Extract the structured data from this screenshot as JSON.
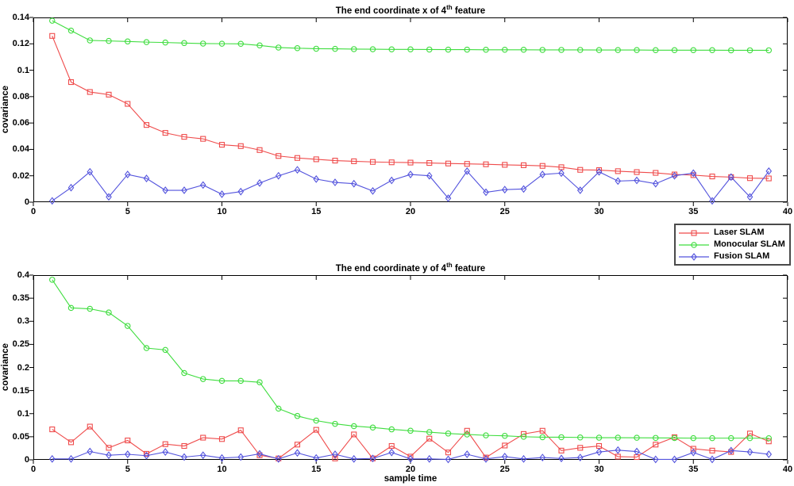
{
  "figure": {
    "background": "#ffffff",
    "axis_color": "#000000",
    "text_color": "#000000"
  },
  "legend": {
    "border_color": "#4a4a4a",
    "items": [
      {
        "label": "Laser SLAM",
        "color": "#ef4b4b",
        "marker": "square"
      },
      {
        "label": "Monocular SLAM",
        "color": "#3fdd3f",
        "marker": "circle"
      },
      {
        "label": "Fusion SLAM",
        "color": "#5353dd",
        "marker": "diamond"
      }
    ]
  },
  "chart_data": [
    {
      "type": "line",
      "title": "The end coordinate x of 4th feature",
      "title_parts": {
        "pre": "The end coordinate x of 4",
        "sup": "th",
        "post": " feature"
      },
      "xlabel": "",
      "ylabel": "covariance",
      "xlim": [
        0,
        40
      ],
      "ylim": [
        0,
        0.14
      ],
      "grid": false,
      "legend_position": "outside-right-below",
      "xtick_values": [
        0,
        5,
        10,
        15,
        20,
        25,
        30,
        35,
        40
      ],
      "xtick_labels": [
        "0",
        "5",
        "10",
        "15",
        "20",
        "25",
        "30",
        "35",
        "40"
      ],
      "ytick_values": [
        0,
        0.02,
        0.04,
        0.06,
        0.08,
        0.1,
        0.12,
        0.14
      ],
      "ytick_labels": [
        "0",
        "0.02",
        "0.04",
        "0.06",
        "0.08",
        "0.1",
        "0.12",
        "0.14"
      ],
      "x": [
        1,
        2,
        3,
        4,
        5,
        6,
        7,
        8,
        9,
        10,
        11,
        12,
        13,
        14,
        15,
        16,
        17,
        18,
        19,
        20,
        21,
        22,
        23,
        24,
        25,
        26,
        27,
        28,
        29,
        30,
        31,
        32,
        33,
        34,
        35,
        36,
        37,
        38,
        39
      ],
      "series": [
        {
          "name": "Laser SLAM",
          "color": "#ef4b4b",
          "marker": "square",
          "values": [
            0.126,
            0.091,
            0.0835,
            0.0815,
            0.0745,
            0.0585,
            0.0525,
            0.0495,
            0.048,
            0.0435,
            0.0425,
            0.0395,
            0.035,
            0.0335,
            0.0325,
            0.0315,
            0.031,
            0.0305,
            0.0302,
            0.03,
            0.0297,
            0.0293,
            0.029,
            0.0287,
            0.0283,
            0.028,
            0.0275,
            0.0265,
            0.0245,
            0.0243,
            0.0235,
            0.0228,
            0.0222,
            0.021,
            0.0205,
            0.0195,
            0.019,
            0.0182,
            0.018
          ]
        },
        {
          "name": "Monocular SLAM",
          "color": "#3fdd3f",
          "marker": "circle",
          "values": [
            0.1375,
            0.13,
            0.1226,
            0.1222,
            0.1218,
            0.1213,
            0.121,
            0.1206,
            0.1202,
            0.1201,
            0.12,
            0.1188,
            0.1172,
            0.1167,
            0.1163,
            0.1162,
            0.116,
            0.1159,
            0.1158,
            0.1158,
            0.1157,
            0.1156,
            0.1156,
            0.1155,
            0.1155,
            0.1155,
            0.1154,
            0.1154,
            0.1154,
            0.1153,
            0.1153,
            0.1153,
            0.1152,
            0.1152,
            0.1152,
            0.1152,
            0.1151,
            0.1151,
            0.1151
          ]
        },
        {
          "name": "Fusion SLAM",
          "color": "#5353dd",
          "marker": "diamond",
          "values": [
            0.001,
            0.011,
            0.023,
            0.004,
            0.021,
            0.018,
            0.009,
            0.009,
            0.013,
            0.006,
            0.008,
            0.0145,
            0.02,
            0.0245,
            0.0175,
            0.015,
            0.014,
            0.0085,
            0.0165,
            0.021,
            0.02,
            0.003,
            0.0235,
            0.0075,
            0.0095,
            0.01,
            0.021,
            0.022,
            0.009,
            0.023,
            0.016,
            0.0165,
            0.014,
            0.02,
            0.022,
            0.001,
            0.019,
            0.004,
            0.0235
          ]
        }
      ]
    },
    {
      "type": "line",
      "title": "The end coordinate y of 4th feature",
      "title_parts": {
        "pre": "The end coordinate y of 4",
        "sup": "th",
        "post": " feature"
      },
      "xlabel": "sample time",
      "ylabel": "covariance",
      "xlim": [
        0,
        40
      ],
      "ylim": [
        0,
        0.4
      ],
      "grid": false,
      "legend_position": "none",
      "xtick_values": [
        0,
        5,
        10,
        15,
        20,
        25,
        30,
        35,
        40
      ],
      "xtick_labels": [
        "0",
        "5",
        "10",
        "15",
        "20",
        "25",
        "30",
        "35",
        "40"
      ],
      "ytick_values": [
        0,
        0.05,
        0.1,
        0.15,
        0.2,
        0.25,
        0.3,
        0.35,
        0.4
      ],
      "ytick_labels": [
        "0",
        "0.05",
        "0.1",
        "0.15",
        "0.2",
        "0.25",
        "0.3",
        "0.35",
        "0.4"
      ],
      "x": [
        1,
        2,
        3,
        4,
        5,
        6,
        7,
        8,
        9,
        10,
        11,
        12,
        13,
        14,
        15,
        16,
        17,
        18,
        19,
        20,
        21,
        22,
        23,
        24,
        25,
        26,
        27,
        28,
        29,
        30,
        31,
        32,
        33,
        34,
        35,
        36,
        37,
        38,
        39
      ],
      "series": [
        {
          "name": "Laser SLAM",
          "color": "#ef4b4b",
          "marker": "square",
          "values": [
            0.066,
            0.038,
            0.072,
            0.026,
            0.042,
            0.013,
            0.034,
            0.03,
            0.048,
            0.045,
            0.064,
            0.01,
            0.003,
            0.033,
            0.065,
            0.003,
            0.055,
            0.003,
            0.03,
            0.007,
            0.046,
            0.016,
            0.063,
            0.005,
            0.031,
            0.056,
            0.063,
            0.02,
            0.026,
            0.03,
            0.007,
            0.006,
            0.033,
            0.049,
            0.024,
            0.02,
            0.017,
            0.057,
            0.04
          ]
        },
        {
          "name": "Monocular SLAM",
          "color": "#3fdd3f",
          "marker": "circle",
          "values": [
            0.39,
            0.329,
            0.327,
            0.319,
            0.29,
            0.242,
            0.238,
            0.188,
            0.175,
            0.171,
            0.171,
            0.168,
            0.111,
            0.095,
            0.085,
            0.078,
            0.073,
            0.07,
            0.066,
            0.063,
            0.06,
            0.057,
            0.055,
            0.053,
            0.052,
            0.05,
            0.049,
            0.049,
            0.0485,
            0.048,
            0.048,
            0.0478,
            0.0475,
            0.0473,
            0.047,
            0.047,
            0.047,
            0.047,
            0.0468
          ]
        },
        {
          "name": "Fusion SLAM",
          "color": "#5353dd",
          "marker": "diamond",
          "values": [
            0.002,
            0.002,
            0.018,
            0.01,
            0.012,
            0.009,
            0.017,
            0.006,
            0.01,
            0.004,
            0.006,
            0.013,
            0.002,
            0.015,
            0.004,
            0.012,
            0.002,
            0.003,
            0.016,
            0.002,
            0.002,
            0.001,
            0.012,
            0.002,
            0.007,
            0.002,
            0.005,
            0.003,
            0.005,
            0.017,
            0.021,
            0.018,
            0.001,
            0.001,
            0.016,
            0.001,
            0.02,
            0.017,
            0.012
          ]
        }
      ]
    }
  ]
}
